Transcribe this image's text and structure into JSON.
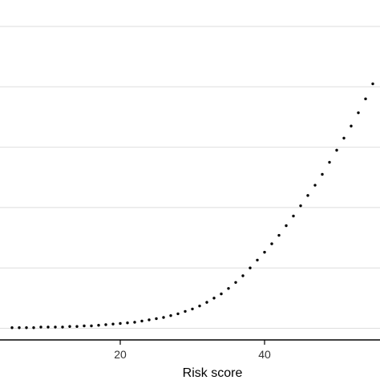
{
  "chart_data": {
    "type": "scatter",
    "title": "",
    "xlabel": "Risk score",
    "ylabel": "",
    "xlim": [
      3.5,
      56
    ],
    "ylim": [
      0,
      5.2
    ],
    "x_ticks": [
      20,
      40
    ],
    "x_tick_labels": [
      "20",
      "40"
    ],
    "y_gridlines": [
      0,
      1,
      2,
      3,
      4,
      5
    ],
    "grid": "horizontal",
    "legend": "none",
    "marker_color": "#000000",
    "series": [
      {
        "x": [
          5,
          6,
          7,
          8,
          9,
          10,
          11,
          12,
          13,
          14,
          15,
          16,
          17,
          18,
          19,
          20,
          21,
          22,
          23,
          24,
          25,
          26,
          27,
          28,
          29,
          30,
          31,
          32,
          33,
          34,
          35,
          36,
          37,
          38,
          39,
          40,
          41,
          42,
          43,
          44,
          45,
          46,
          47,
          48,
          49,
          50,
          51,
          52,
          53,
          54,
          55
        ],
        "y": [
          0.01,
          0.01,
          0.01,
          0.01,
          0.02,
          0.02,
          0.02,
          0.02,
          0.03,
          0.03,
          0.04,
          0.04,
          0.05,
          0.06,
          0.07,
          0.08,
          0.09,
          0.1,
          0.12,
          0.14,
          0.16,
          0.18,
          0.21,
          0.24,
          0.28,
          0.32,
          0.37,
          0.43,
          0.5,
          0.57,
          0.66,
          0.76,
          0.87,
          1.0,
          1.13,
          1.26,
          1.4,
          1.54,
          1.7,
          1.86,
          2.03,
          2.2,
          2.37,
          2.55,
          2.75,
          2.95,
          3.15,
          3.35,
          3.57,
          3.8,
          4.05
        ]
      }
    ]
  }
}
